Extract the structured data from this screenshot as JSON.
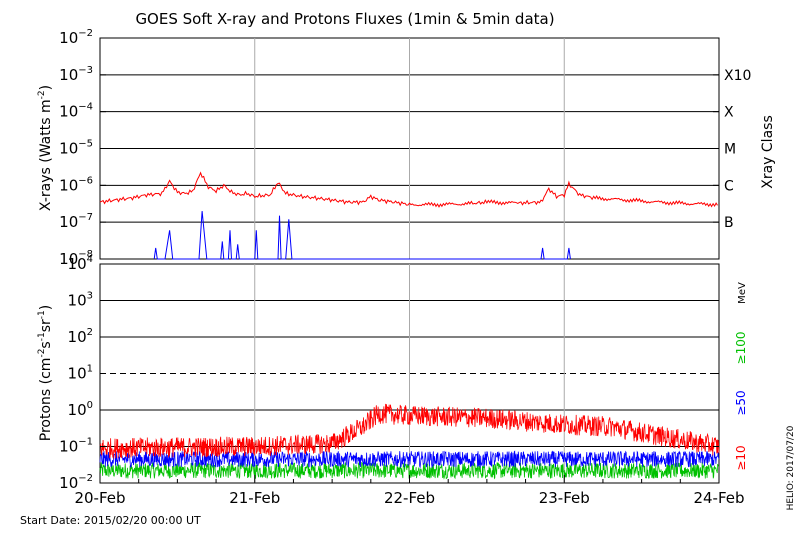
{
  "chart_data": [
    {
      "type": "line",
      "title": "GOES Soft X-ray and Protons Fluxes   (1min & 5min data)",
      "ylabel": "X-rays (Watts m",
      "ylabel_sup": "-2",
      "ylabel_close": ")",
      "yscale": "log",
      "ylim": [
        1e-08,
        0.01
      ],
      "y_tick_exponents": [
        -2,
        -3,
        -4,
        -5,
        -6,
        -7,
        -8
      ],
      "right_axis_label": "Xray Class",
      "class_labels": [
        {
          "label": "X10",
          "value": 0.001
        },
        {
          "label": "X",
          "value": 0.0001
        },
        {
          "label": "M",
          "value": 1e-05
        },
        {
          "label": "C",
          "value": 1e-06
        },
        {
          "label": "B",
          "value": 1e-07
        }
      ],
      "gridlines_y": [
        0.001,
        0.0001,
        1e-05,
        1e-06,
        1e-07
      ],
      "series": [
        {
          "color": "#ff0000",
          "points": [
            [
              0.0,
              3.5e-07
            ],
            [
              0.1,
              4e-07
            ],
            [
              0.2,
              4.5e-07
            ],
            [
              0.3,
              5.5e-07
            ],
            [
              0.4,
              6e-07
            ],
            [
              0.45,
              1.3e-06
            ],
            [
              0.5,
              6.5e-07
            ],
            [
              0.55,
              6e-07
            ],
            [
              0.6,
              7e-07
            ],
            [
              0.65,
              2.2e-06
            ],
            [
              0.7,
              9e-07
            ],
            [
              0.75,
              7e-07
            ],
            [
              0.8,
              1e-06
            ],
            [
              0.85,
              6.5e-07
            ],
            [
              0.9,
              5.5e-07
            ],
            [
              0.95,
              6e-07
            ],
            [
              1.0,
              5e-07
            ],
            [
              1.1,
              5.5e-07
            ],
            [
              1.15,
              1.2e-06
            ],
            [
              1.2,
              6e-07
            ],
            [
              1.3,
              5e-07
            ],
            [
              1.4,
              4.5e-07
            ],
            [
              1.5,
              4e-07
            ],
            [
              1.6,
              3.5e-07
            ],
            [
              1.7,
              3.5e-07
            ],
            [
              1.75,
              5e-07
            ],
            [
              1.8,
              4e-07
            ],
            [
              1.9,
              3.5e-07
            ],
            [
              2.0,
              3e-07
            ],
            [
              2.2,
              3e-07
            ],
            [
              2.4,
              3.2e-07
            ],
            [
              2.5,
              3.5e-07
            ],
            [
              2.7,
              3.3e-07
            ],
            [
              2.85,
              3.5e-07
            ],
            [
              2.9,
              8e-07
            ],
            [
              2.95,
              5e-07
            ],
            [
              3.0,
              5.5e-07
            ],
            [
              3.03,
              1.1e-06
            ],
            [
              3.1,
              5.5e-07
            ],
            [
              3.2,
              4.5e-07
            ],
            [
              3.4,
              4e-07
            ],
            [
              3.6,
              3.5e-07
            ],
            [
              3.8,
              3.2e-07
            ],
            [
              4.0,
              3e-07
            ]
          ]
        },
        {
          "color": "#0000ff",
          "points": [
            [
              0.35,
              1e-08
            ],
            [
              0.36,
              2e-08
            ],
            [
              0.37,
              1e-08
            ],
            [
              0.42,
              1e-08
            ],
            [
              0.45,
              6e-08
            ],
            [
              0.47,
              1e-08
            ],
            [
              0.64,
              1e-08
            ],
            [
              0.66,
              2e-07
            ],
            [
              0.69,
              1e-08
            ],
            [
              0.78,
              1e-08
            ],
            [
              0.79,
              3e-08
            ],
            [
              0.8,
              1e-08
            ],
            [
              0.83,
              1e-08
            ],
            [
              0.84,
              6e-08
            ],
            [
              0.85,
              1e-08
            ],
            [
              0.88,
              1e-08
            ],
            [
              0.89,
              2.5e-08
            ],
            [
              0.9,
              1e-08
            ],
            [
              1.0,
              1e-08
            ],
            [
              1.01,
              6e-08
            ],
            [
              1.02,
              1e-08
            ],
            [
              1.15,
              1e-08
            ],
            [
              1.16,
              1.5e-07
            ],
            [
              1.17,
              1e-08
            ],
            [
              1.2,
              1e-08
            ],
            [
              1.22,
              1.2e-07
            ],
            [
              1.24,
              1e-08
            ],
            [
              2.85,
              1e-08
            ],
            [
              2.86,
              2e-08
            ],
            [
              2.87,
              1e-08
            ],
            [
              3.02,
              1e-08
            ],
            [
              3.03,
              2e-08
            ],
            [
              3.04,
              1e-08
            ]
          ]
        }
      ]
    },
    {
      "type": "line",
      "ylabel": "Protons (cm",
      "ylabel_sup1": "-2",
      "ylabel_mid": "s",
      "ylabel_sup2": "-1",
      "ylabel_mid2": "sr",
      "ylabel_sup3": "-1",
      "ylabel_close": ")",
      "yscale": "log",
      "ylim": [
        0.01,
        10000
      ],
      "y_tick_exponents": [
        4,
        3,
        2,
        1,
        0,
        -1,
        -2
      ],
      "gridlines_y": [
        1000,
        100,
        1,
        0.1
      ],
      "dashed_threshold": 10,
      "units_label": "MeV",
      "legend": [
        {
          "label": "≥100",
          "color": "#00c000"
        },
        {
          "label": "≥50",
          "color": "#0000ff"
        },
        {
          "label": "≥10",
          "color": "#ff0000"
        }
      ],
      "series": [
        {
          "name": "≥10",
          "color": "#ff0000",
          "base_envelope": [
            [
              0.0,
              0.09
            ],
            [
              1.0,
              0.1
            ],
            [
              1.5,
              0.12
            ],
            [
              1.7,
              0.35
            ],
            [
              1.8,
              0.8
            ],
            [
              2.0,
              0.7
            ],
            [
              2.5,
              0.6
            ],
            [
              3.0,
              0.4
            ],
            [
              3.3,
              0.35
            ],
            [
              3.6,
              0.2
            ],
            [
              4.0,
              0.1
            ]
          ]
        },
        {
          "name": "≥50",
          "color": "#0000ff",
          "base_envelope": [
            [
              0.0,
              0.045
            ],
            [
              4.0,
              0.045
            ]
          ]
        },
        {
          "name": "≥100",
          "color": "#00c000",
          "base_envelope": [
            [
              0.0,
              0.022
            ],
            [
              4.0,
              0.022
            ]
          ]
        }
      ]
    }
  ],
  "x_axis": {
    "tick_labels": [
      "20-Feb",
      "21-Feb",
      "22-Feb",
      "23-Feb",
      "24-Feb"
    ],
    "xlim": [
      0,
      4
    ]
  },
  "footer": {
    "start_date": "Start Date: 2015/02/20 00:00 UT",
    "credit": "HELIO: 2017/07/20"
  }
}
